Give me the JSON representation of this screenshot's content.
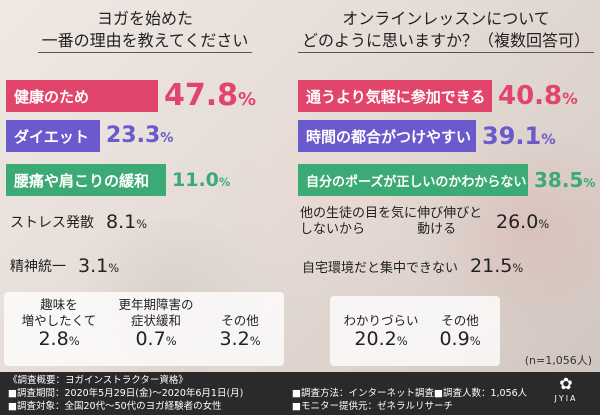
{
  "chart_data": [
    {
      "type": "bar",
      "title_line1": "ヨガを始めた",
      "title_line2": "一番の理由を教えてください",
      "categories": [
        "健康のため",
        "ダイエット",
        "腰痛や肩こりの緩和",
        "ストレス発散",
        "精神統一",
        "趣味を増やしたくて",
        "更年期障害の症状緩和",
        "その他"
      ],
      "values": [
        47.8,
        23.3,
        11.0,
        8.1,
        3.1,
        2.8,
        0.7,
        3.2
      ],
      "value_labels": [
        "47.8",
        "23.3",
        "11.0",
        "8.1",
        "3.1",
        "2.8",
        "0.7",
        "3.2"
      ],
      "unit": "%",
      "extra_labels": {
        "hobby_line1": "趣味を",
        "hobby_line2": "増やしたくて",
        "meno_line1": "更年期障害の",
        "meno_line2": "症状緩和"
      }
    },
    {
      "type": "bar",
      "title_line1": "オンラインレッスンについて",
      "title_line2": "どのように思いますか？（複数回答可）",
      "categories": [
        "通うより気軽に参加できる",
        "時間の都合がつけやすい",
        "自分のポーズが正しいのかわからない",
        "他の生徒の目を気にしないから伸び伸びと動ける",
        "自宅環境だと集中できない",
        "わかりづらい",
        "その他"
      ],
      "values": [
        40.8,
        39.1,
        38.5,
        26.0,
        21.5,
        20.2,
        0.9
      ],
      "value_labels": [
        "40.8",
        "39.1",
        "38.5",
        "26.0",
        "21.5",
        "20.2",
        "0.9"
      ],
      "unit": "%",
      "extra_labels": {
        "other_student_line1": "他の生徒の目を気にしないから",
        "other_student_line2": "伸び伸びと動ける"
      }
    }
  ],
  "colors": {
    "pink": "#e2456b",
    "purple": "#6a5acd",
    "green": "#3caa74",
    "footer_bg": "#2a2a2a"
  },
  "sample_note": "(n=1,056人)",
  "footer": {
    "overview": "《調査概要：ヨガインストラクター資格》",
    "period": "■調査期間：2020年5月29日(金)～2020年6月1日(月)",
    "method": "■調査方法：インターネット調査",
    "count": "■調査人数：1,056人",
    "target": "■調査対象：全国20代～50代のヨガ経験者の女性",
    "provider": "■モニター提供元：ゼネラルリサーチ"
  },
  "logo_text": "JYIA"
}
